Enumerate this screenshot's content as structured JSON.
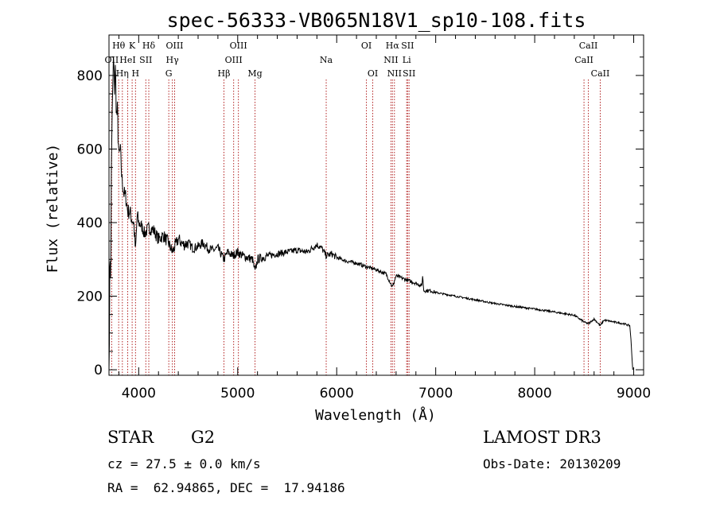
{
  "colors": {
    "axis": "#000000",
    "spectrum": "#000000",
    "line_marker": "#b22222",
    "background": "#ffffff"
  },
  "chart_data": {
    "type": "line",
    "title": "spec-56333-VB065N18V1_sp10-108.fits",
    "xlabel": "Wavelength (Å)",
    "ylabel": "Flux (relative)",
    "xlim": [
      3700,
      9100
    ],
    "ylim": [
      -15,
      910
    ],
    "xticks": [
      4000,
      5000,
      6000,
      7000,
      8000,
      9000
    ],
    "yticks": [
      0,
      200,
      400,
      600,
      800
    ],
    "series": [
      {
        "name": "spectrum",
        "x": [
          3700,
          3705,
          3710,
          3718,
          3725,
          3735,
          3745,
          3755,
          3765,
          3775,
          3785,
          3800,
          3815,
          3830,
          3850,
          3870,
          3890,
          3910,
          3930,
          3950,
          3968,
          3985,
          4000,
          4030,
          4060,
          4100,
          4150,
          4200,
          4250,
          4300,
          4340,
          4400,
          4450,
          4500,
          4550,
          4600,
          4650,
          4700,
          4750,
          4800,
          4861,
          4900,
          4950,
          5000,
          5050,
          5100,
          5150,
          5175,
          5200,
          5250,
          5300,
          5400,
          5500,
          5600,
          5700,
          5800,
          5850,
          5893,
          5950,
          6000,
          6100,
          6200,
          6300,
          6400,
          6500,
          6563,
          6600,
          6700,
          6800,
          6860,
          6868,
          6880,
          6950,
          7000,
          7200,
          7400,
          7600,
          7800,
          8000,
          8200,
          8400,
          8498,
          8542,
          8600,
          8662,
          8700,
          8800,
          8900,
          8960,
          8970,
          8985,
          8990
        ],
        "y": [
          0,
          130,
          330,
          250,
          600,
          720,
          850,
          760,
          820,
          690,
          700,
          580,
          600,
          520,
          480,
          470,
          430,
          430,
          410,
          400,
          320,
          420,
          400,
          390,
          370,
          385,
          380,
          355,
          365,
          345,
          320,
          355,
          340,
          345,
          330,
          335,
          345,
          330,
          325,
          330,
          300,
          320,
          310,
          320,
          310,
          305,
          300,
          265,
          300,
          305,
          310,
          315,
          320,
          325,
          320,
          340,
          330,
          310,
          315,
          305,
          295,
          290,
          280,
          272,
          260,
          225,
          255,
          245,
          235,
          228,
          255,
          215,
          215,
          210,
          200,
          190,
          180,
          172,
          165,
          157,
          148,
          130,
          125,
          138,
          120,
          135,
          130,
          125,
          120,
          90,
          20,
          0
        ]
      }
    ],
    "spectral_lines": [
      {
        "label": "OII",
        "wavelength": 3727,
        "tier": 2
      },
      {
        "label": "Hθ",
        "wavelength": 3798,
        "tier": 1
      },
      {
        "label": "Hη",
        "wavelength": 3835,
        "tier": 3
      },
      {
        "label": "HeI",
        "wavelength": 3889,
        "tier": 2
      },
      {
        "label": "K",
        "wavelength": 3934,
        "tier": 1
      },
      {
        "label": "H",
        "wavelength": 3968,
        "tier": 3
      },
      {
        "label": "SII",
        "wavelength": 4072,
        "tier": 2
      },
      {
        "label": "Hδ",
        "wavelength": 4102,
        "tier": 1
      },
      {
        "label": "G",
        "wavelength": 4304,
        "tier": 3
      },
      {
        "label": "Hγ",
        "wavelength": 4340,
        "tier": 2
      },
      {
        "label": "OIII",
        "wavelength": 4363,
        "tier": 1
      },
      {
        "label": "Hβ",
        "wavelength": 4861,
        "tier": 3
      },
      {
        "label": "OIII",
        "wavelength": 4959,
        "tier": 2
      },
      {
        "label": "OIII",
        "wavelength": 5007,
        "tier": 1
      },
      {
        "label": "Mg",
        "wavelength": 5175,
        "tier": 3
      },
      {
        "label": "Na",
        "wavelength": 5894,
        "tier": 2
      },
      {
        "label": "OI",
        "wavelength": 6300,
        "tier": 1
      },
      {
        "label": "OI",
        "wavelength": 6364,
        "tier": 3
      },
      {
        "label": "NII",
        "wavelength": 6548,
        "tier": 2
      },
      {
        "label": "Hα",
        "wavelength": 6563,
        "tier": 1
      },
      {
        "label": "NII",
        "wavelength": 6583,
        "tier": 3
      },
      {
        "label": "Li",
        "wavelength": 6707,
        "tier": 2
      },
      {
        "label": "SII",
        "wavelength": 6716,
        "tier": 1
      },
      {
        "label": "SII",
        "wavelength": 6731,
        "tier": 3
      },
      {
        "label": "CaII",
        "wavelength": 8498,
        "tier": 2
      },
      {
        "label": "CaII",
        "wavelength": 8542,
        "tier": 1
      },
      {
        "label": "CaII",
        "wavelength": 8662,
        "tier": 3
      }
    ]
  },
  "info": {
    "object_class": "STAR",
    "subclass": "G2",
    "redshift_line": "cz = 27.5 ± 0.0 km/s",
    "coords_line": "RA =  62.94865, DEC =  17.94186",
    "survey": "LAMOST DR3",
    "obs_date": "Obs-Date: 20130209"
  }
}
